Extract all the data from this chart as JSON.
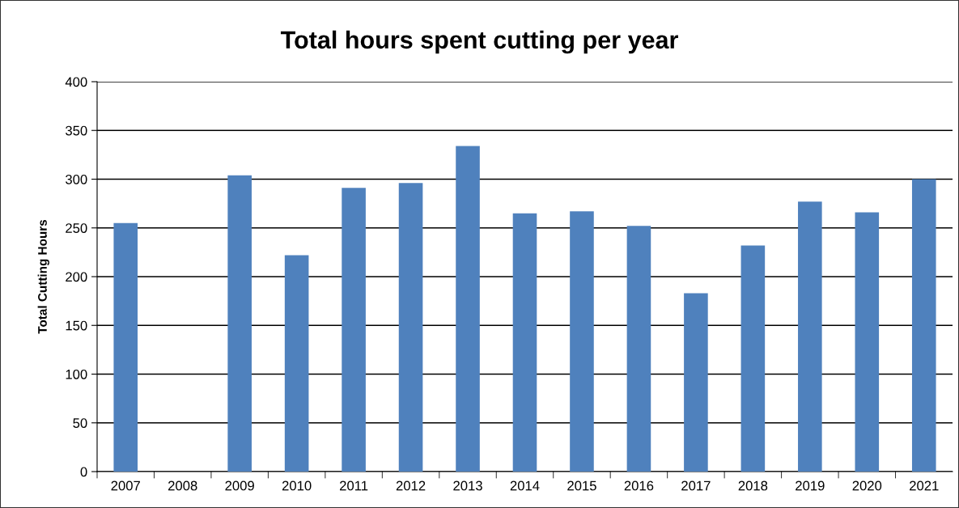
{
  "chart_data": {
    "type": "bar",
    "title": "Total hours spent cutting per year",
    "ylabel": "Total Cutting Hours",
    "categories": [
      "2007",
      "2008",
      "2009",
      "2010",
      "2011",
      "2012",
      "2013",
      "2014",
      "2015",
      "2016",
      "2017",
      "2018",
      "2019",
      "2020",
      "2021"
    ],
    "values": [
      255,
      null,
      304,
      222,
      291,
      296,
      334,
      265,
      267,
      252,
      183,
      232,
      277,
      266,
      300
    ],
    "color": "#4f81bd",
    "ylim": [
      0,
      400
    ],
    "yticks": [
      0,
      50,
      100,
      150,
      200,
      250,
      300,
      350,
      400
    ],
    "grid": "y"
  }
}
